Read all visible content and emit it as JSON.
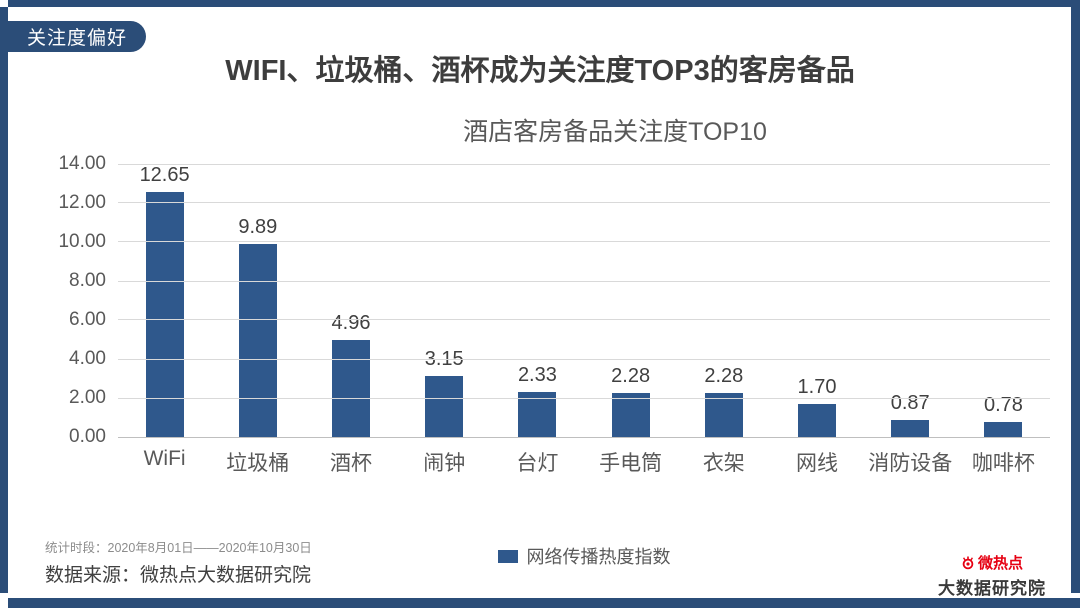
{
  "page": {
    "badge_label": "关注度偏好",
    "title": "WIFI、垃圾桶、酒杯成为关注度TOP3的客房备品"
  },
  "chart_data": {
    "type": "bar",
    "title": "酒店客房备品关注度TOP10",
    "categories": [
      "WiFi",
      "垃圾桶",
      "酒杯",
      "闹钟",
      "台灯",
      "手电筒",
      "衣架",
      "网线",
      "消防设备",
      "咖啡杯"
    ],
    "values": [
      12.65,
      9.89,
      4.96,
      3.15,
      2.33,
      2.28,
      2.28,
      1.7,
      0.87,
      0.78
    ],
    "value_labels": [
      "12.65",
      "9.89",
      "4.96",
      "3.15",
      "2.33",
      "2.28",
      "2.28",
      "1.70",
      "0.87",
      "0.78"
    ],
    "ylim": [
      0,
      14
    ],
    "ytick_step": 2,
    "ytick_labels": [
      "14.00",
      "12.00",
      "10.00",
      "8.00",
      "6.00",
      "4.00",
      "2.00",
      "0.00"
    ],
    "grid": true,
    "bar_color": "#2F588C",
    "legend": {
      "label": "网络传播热度指数",
      "position": "bottom"
    }
  },
  "footer": {
    "stats_period": "统计时段：2020年8月01日——2020年10月30日",
    "data_source": "数据来源：微热点大数据研究院",
    "logo_line1": "微热点",
    "logo_line2": "大数据研究院"
  },
  "colors": {
    "frame_navy": "#2B4D78",
    "bar_blue": "#2F588C",
    "logo_red": "#E60012"
  }
}
